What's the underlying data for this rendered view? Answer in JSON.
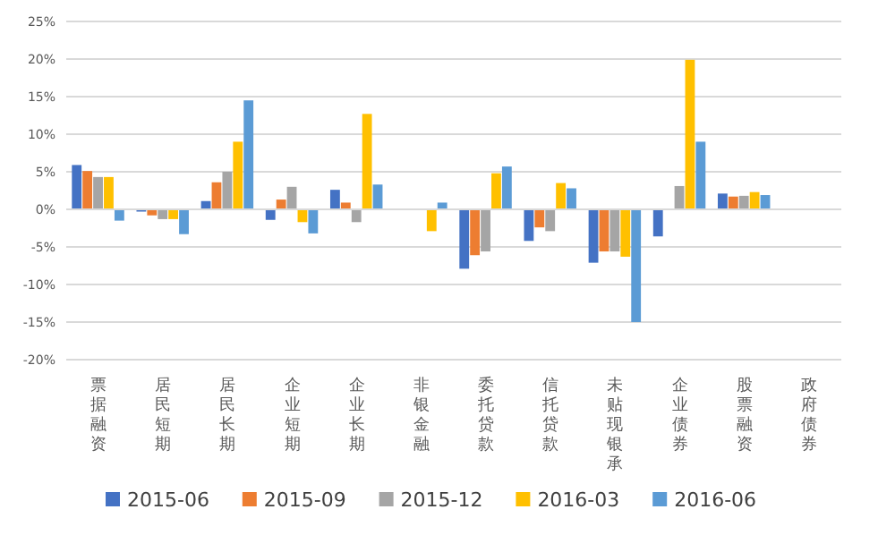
{
  "chart_data": {
    "type": "bar",
    "categories": [
      "票据融资",
      "居民短期",
      "居民长期",
      "企业短期",
      "企业长期",
      "非银金融",
      "委托贷款",
      "信托贷款",
      "未贴现银承",
      "企业债券",
      "股票融资",
      "政府债券"
    ],
    "series": [
      {
        "name": "2015-06",
        "color": "#4472c4",
        "values": [
          5.9,
          -0.3,
          1.1,
          -1.4,
          2.6,
          0,
          -7.9,
          -4.2,
          -7.1,
          -3.6,
          2.1,
          0
        ]
      },
      {
        "name": "2015-09",
        "color": "#ed7d31",
        "values": [
          5.1,
          -0.8,
          3.6,
          1.3,
          0.9,
          0,
          -6.1,
          -2.4,
          -5.6,
          null,
          1.7,
          0
        ]
      },
      {
        "name": "2015-12",
        "color": "#a5a5a5",
        "values": [
          4.3,
          -1.3,
          5.0,
          3.0,
          -1.7,
          0,
          -5.6,
          -2.9,
          -5.6,
          3.1,
          1.8,
          0
        ]
      },
      {
        "name": "2016-03",
        "color": "#ffc000",
        "values": [
          4.3,
          -1.3,
          9.0,
          -1.7,
          12.7,
          -2.9,
          4.8,
          3.5,
          -6.3,
          19.9,
          2.3,
          0
        ]
      },
      {
        "name": "2016-06",
        "color": "#5b9bd5",
        "values": [
          -1.5,
          -3.3,
          14.5,
          -3.2,
          3.3,
          0.9,
          5.7,
          2.8,
          -15.0,
          9.0,
          1.9,
          0
        ]
      }
    ],
    "ylim": [
      -20,
      25
    ],
    "yticks": [
      {
        "value": -20,
        "label": "-20%"
      },
      {
        "value": -15,
        "label": "-15%"
      },
      {
        "value": -10,
        "label": "-10%"
      },
      {
        "value": -5,
        "label": "-5%"
      },
      {
        "value": 0,
        "label": "0%"
      },
      {
        "value": 5,
        "label": "5%"
      },
      {
        "value": 10,
        "label": "10%"
      },
      {
        "value": 15,
        "label": "15%"
      },
      {
        "value": 20,
        "label": "20%"
      },
      {
        "value": 25,
        "label": "25%"
      }
    ],
    "grid": "y",
    "legend": "bottom"
  }
}
